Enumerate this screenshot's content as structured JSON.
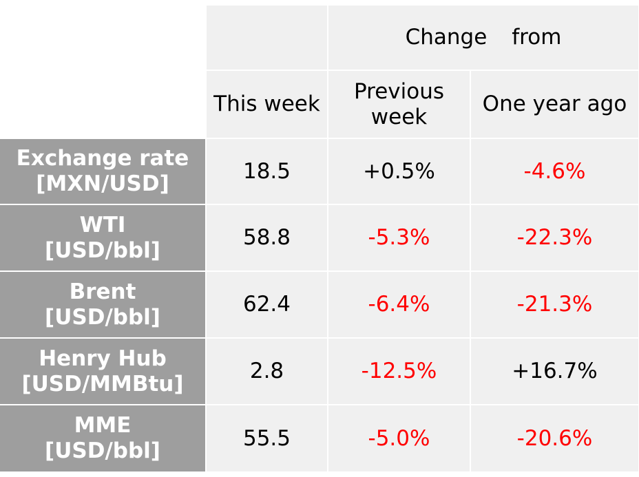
{
  "header": {
    "this_week": "This week",
    "change_from_1": "Change",
    "change_from_2": "from",
    "previous_week_line1": "Previous",
    "previous_week_line2": "week",
    "one_year_ago": "One year ago"
  },
  "rows": [
    {
      "label_line1": "Exchange rate",
      "label_line2": "[MXN/USD]",
      "this_week": "18.5",
      "prev_week": "+0.5%",
      "year_ago": "-4.6%"
    },
    {
      "label_line1": "WTI",
      "label_line2": "[USD/bbl]",
      "this_week": "58.8",
      "prev_week": "-5.3%",
      "year_ago": "-22.3%"
    },
    {
      "label_line1": "Brent",
      "label_line2": "[USD/bbl]",
      "this_week": "62.4",
      "prev_week": "-6.4%",
      "year_ago": "-21.3%"
    },
    {
      "label_line1": "Henry Hub",
      "label_line2": "[USD/MMBtu]",
      "this_week": "2.8",
      "prev_week": "-12.5%",
      "year_ago": "+16.7%"
    },
    {
      "label_line1": "MME",
      "label_line2": "[USD/bbl]",
      "this_week": "55.5",
      "prev_week": "-5.0%",
      "year_ago": "-20.6%"
    }
  ],
  "colors": {
    "negative": "#ff0000",
    "positive": "#000000",
    "label_bg": "#9e9e9e",
    "cell_bg": "#f0f0f0"
  }
}
